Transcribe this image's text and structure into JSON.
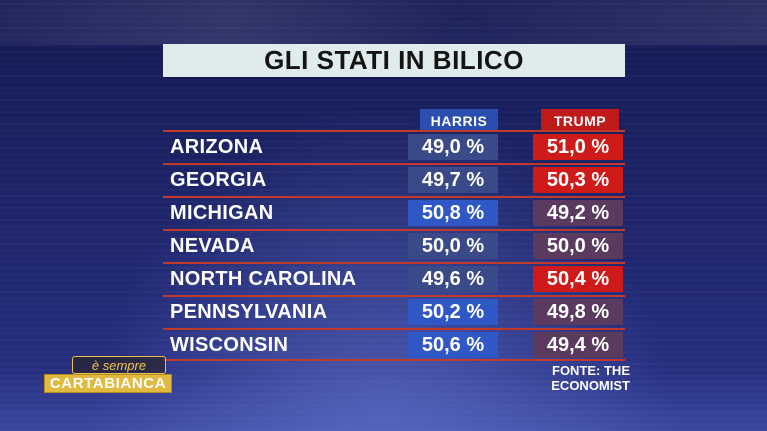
{
  "title": "GLI STATI IN BILICO",
  "chart_data": {
    "type": "table",
    "columns": [
      "HARRIS",
      "TRUMP"
    ],
    "rows": [
      {
        "state": "ARIZONA",
        "harris": "49,0 %",
        "trump": "51,0 %",
        "winner": "trump"
      },
      {
        "state": "GEORGIA",
        "harris": "49,7 %",
        "trump": "50,3 %",
        "winner": "trump"
      },
      {
        "state": "MICHIGAN",
        "harris": "50,8 %",
        "trump": "49,2 %",
        "winner": "harris"
      },
      {
        "state": "NEVADA",
        "harris": "50,0 %",
        "trump": "50,0 %",
        "winner": "tie"
      },
      {
        "state": "NORTH CAROLINA",
        "harris": "49,6 %",
        "trump": "50,4 %",
        "winner": "trump"
      },
      {
        "state": "PENNSYLVANIA",
        "harris": "50,2 %",
        "trump": "49,8 %",
        "winner": "harris"
      },
      {
        "state": "WISCONSIN",
        "harris": "50,6 %",
        "trump": "49,4 %",
        "winner": "harris"
      }
    ]
  },
  "source": "FONTE: THE ECONOMIST",
  "logo": {
    "top": "è sempre",
    "bottom": "CARTABIANCA"
  },
  "colors": {
    "harris_strong": "#2f58c6",
    "harris_weak": "#3a4a88",
    "trump_strong": "#cf1a1a",
    "trump_weak": "#5a3a5e",
    "harris_header": "#2a4fb0",
    "trump_header": "#c01a1a"
  }
}
